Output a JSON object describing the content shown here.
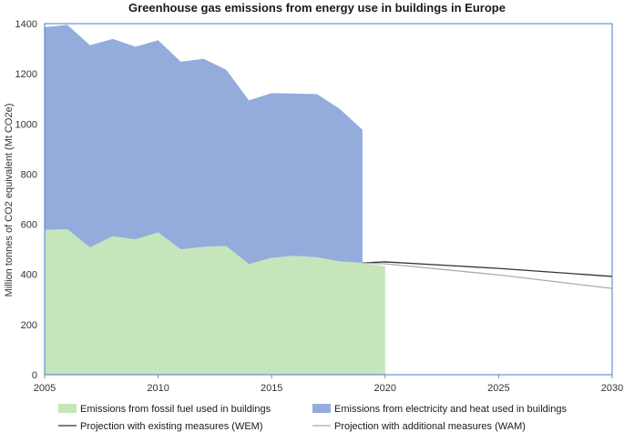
{
  "chart_data": {
    "type": "area",
    "title": "Greenhouse gas emissions from energy use in buildings in Europe",
    "xlabel": "",
    "ylabel": "Million tonnes of CO2 equivalent (Mt CO2e)",
    "xlim": [
      2005,
      2030
    ],
    "ylim": [
      0,
      1400
    ],
    "x_ticks": [
      "2005",
      "2010",
      "2015",
      "2020",
      "2025",
      "2030"
    ],
    "y_ticks": [
      "0",
      "200",
      "400",
      "600",
      "800",
      "1000",
      "1200",
      "1400"
    ],
    "grid": false,
    "legend_position": "bottom",
    "stacked_areas": [
      {
        "name": "Emissions from fossil fuel used in buildings",
        "color": "#c5e6bb",
        "x": [
          2005,
          2006,
          2007,
          2008,
          2009,
          2010,
          2011,
          2012,
          2013,
          2014,
          2015,
          2016,
          2017,
          2018,
          2019,
          2020
        ],
        "values": [
          578,
          580,
          508,
          552,
          540,
          567,
          500,
          510,
          513,
          441,
          466,
          474,
          468,
          452,
          446,
          433
        ]
      },
      {
        "name": "Emissions from electricity and heat used in buildings",
        "color": "#93acdc",
        "x": [
          2005,
          2006,
          2007,
          2008,
          2009,
          2010,
          2011,
          2012,
          2013,
          2014,
          2015,
          2016,
          2017,
          2018,
          2019
        ],
        "values": [
          808,
          815,
          806,
          787,
          768,
          767,
          748,
          750,
          703,
          653,
          657,
          647,
          651,
          608,
          531
        ]
      }
    ],
    "lines": [
      {
        "name": "Projection with existing measures (WEM)",
        "color": "#333333",
        "x": [
          2019,
          2020,
          2025,
          2030
        ],
        "values": [
          446,
          450,
          424,
          392
        ]
      },
      {
        "name": "Projection with additional measures (WAM)",
        "color": "#aaaaaa",
        "x": [
          2019,
          2020,
          2025,
          2030
        ],
        "values": [
          446,
          442,
          398,
          344
        ]
      }
    ]
  }
}
